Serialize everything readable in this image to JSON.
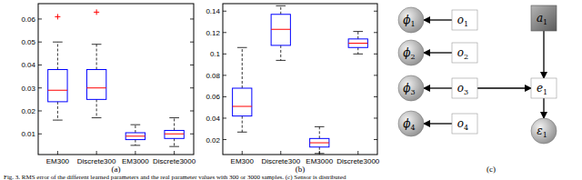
{
  "chart_data": [
    {
      "type": "box",
      "categories": [
        "EM300",
        "Discrete300",
        "EM3000",
        "Discrete3000"
      ],
      "ylim": [
        0.001,
        0.0667
      ],
      "yticks": [
        0.01,
        0.02,
        0.03,
        0.04,
        0.05,
        0.06
      ],
      "color": "#0000ff",
      "boxes": [
        {
          "min": 0.016,
          "q1": 0.024,
          "median": 0.029,
          "q3": 0.038,
          "max": 0.05,
          "outliers": [
            0.061
          ]
        },
        {
          "min": 0.017,
          "q1": 0.025,
          "median": 0.03,
          "q3": 0.038,
          "max": 0.049,
          "outliers": [
            0.063
          ]
        },
        {
          "min": 0.005,
          "q1": 0.0075,
          "median": 0.009,
          "q3": 0.0105,
          "max": 0.014,
          "outliers": []
        },
        {
          "min": 0.0045,
          "q1": 0.008,
          "median": 0.01,
          "q3": 0.0115,
          "max": 0.017,
          "outliers": []
        }
      ]
    },
    {
      "type": "box",
      "categories": [
        "EM300",
        "Discrete300",
        "EM3000",
        "Discrete3000"
      ],
      "ylim": [
        0.006,
        0.147
      ],
      "yticks": [
        0.02,
        0.04,
        0.06,
        0.08,
        0.1,
        0.12,
        0.14
      ],
      "color": "#0000ff",
      "boxes": [
        {
          "min": 0.027,
          "q1": 0.042,
          "median": 0.051,
          "q3": 0.068,
          "max": 0.106,
          "outliers": []
        },
        {
          "min": 0.094,
          "q1": 0.108,
          "median": 0.123,
          "q3": 0.137,
          "max": 0.145,
          "outliers": []
        },
        {
          "min": 0.007,
          "q1": 0.013,
          "median": 0.017,
          "q3": 0.021,
          "max": 0.032,
          "outliers": []
        },
        {
          "min": 0.1,
          "q1": 0.106,
          "median": 0.11,
          "q3": 0.114,
          "max": 0.121,
          "outliers": []
        }
      ]
    }
  ],
  "panel_labels": [
    "(a)",
    "(b)",
    "(c)"
  ],
  "diagram": {
    "nodes": [
      {
        "symbol": "ϕ",
        "subscript": "1",
        "shape": "circle"
      },
      {
        "symbol": "ϕ",
        "subscript": "2",
        "shape": "circle"
      },
      {
        "symbol": "ϕ",
        "subscript": "3",
        "shape": "circle"
      },
      {
        "symbol": "ϕ",
        "subscript": "4",
        "shape": "circle"
      },
      {
        "symbol": "o",
        "subscript": "1",
        "shape": "box"
      },
      {
        "symbol": "o",
        "subscript": "2",
        "shape": "box"
      },
      {
        "symbol": "o",
        "subscript": "3",
        "shape": "box"
      },
      {
        "symbol": "o",
        "subscript": "4",
        "shape": "box"
      },
      {
        "symbol": "a",
        "subscript": "1",
        "shape": "filled_box"
      },
      {
        "symbol": "e",
        "subscript": "1",
        "shape": "box"
      },
      {
        "symbol": "ε",
        "subscript": "1",
        "shape": "circle"
      }
    ],
    "edges": [
      [
        4,
        0
      ],
      [
        5,
        1
      ],
      [
        6,
        2
      ],
      [
        7,
        3
      ],
      [
        6,
        9
      ],
      [
        8,
        9
      ],
      [
        9,
        10
      ]
    ]
  },
  "caption": "Fig. 3.   RMS error of the different learned parameters and the real parameter values with 300 or 3000 samples. (c) Sensor is distributed"
}
